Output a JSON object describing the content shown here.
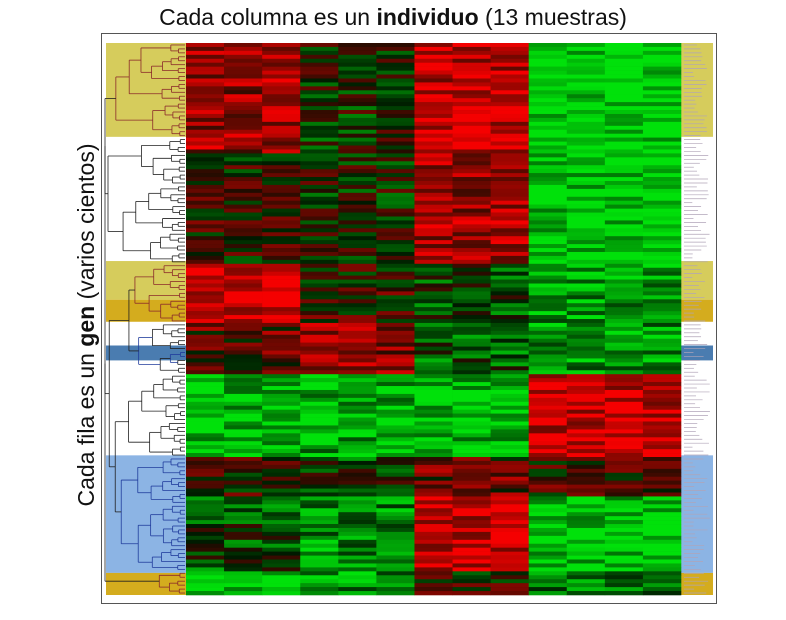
{
  "title": {
    "prefix": "Cada columna es un ",
    "bold": "individuo",
    "suffix": " (13 muestras)"
  },
  "ylabel": {
    "prefix": "Cada fila es un ",
    "bold": "gen",
    "suffix": " (varios cientos)"
  },
  "colors": {
    "background": "#ffffff",
    "frame": "#555555",
    "upregulated_red": "#e8140a",
    "downregulated_green": "#18d018",
    "neutral_black": "#000000",
    "highlight_yellow": "#d6cc5c",
    "highlight_gold": "#d4ac1e",
    "highlight_blue": "#8cb4e4",
    "highlight_steelblue": "#4a7cb0",
    "tree_red": "#8b2a2a",
    "tree_blue": "#203c9c",
    "tree_black": "#202020"
  },
  "chart_data": {
    "type": "heatmap",
    "columns": 13,
    "rows": "varios cientos",
    "color_scale": [
      "downregulated_green",
      "neutral_black",
      "upregulated_red"
    ],
    "highlighted_clusters": [
      {
        "color": "highlight_yellow",
        "rows": [
          0.0,
          0.17
        ]
      },
      {
        "color": "highlight_yellow",
        "rows": [
          0.395,
          0.465
        ]
      },
      {
        "color": "highlight_gold",
        "rows": [
          0.465,
          0.505
        ]
      },
      {
        "color": "highlight_steelblue",
        "rows": [
          0.548,
          0.575
        ]
      },
      {
        "color": "highlight_blue",
        "rows": [
          0.747,
          0.96
        ]
      },
      {
        "color": "highlight_gold",
        "rows": [
          0.96,
          1.0
        ]
      }
    ]
  }
}
